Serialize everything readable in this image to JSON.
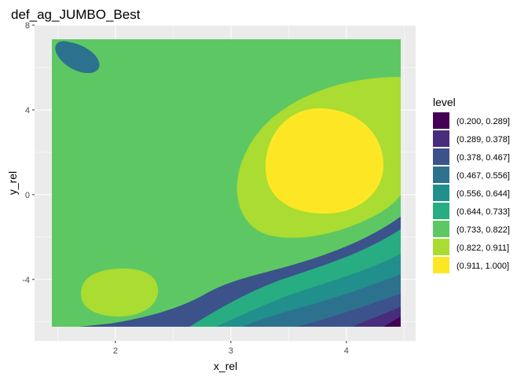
{
  "chart_data": {
    "type": "contour_filled",
    "title": "def_ag_JUMBO_Best",
    "xlabel": "x_rel",
    "ylabel": "y_rel",
    "xlim": [
      1.3,
      4.6
    ],
    "ylim": [
      -6.9,
      8.0
    ],
    "x_ticks": [
      2,
      3,
      4
    ],
    "y_ticks": [
      -4,
      0,
      4,
      8
    ],
    "x_tick_labels": [
      "2",
      "3",
      "4"
    ],
    "y_tick_labels": [
      "-4",
      "0",
      "4",
      "8"
    ],
    "data_extent": {
      "x": [
        1.4,
        4.5
      ],
      "y": [
        -6.3,
        7.5
      ]
    },
    "legend_title": "level",
    "legend_position": "right",
    "levels": [
      {
        "label": "(0.200, 0.289]",
        "color": "#440154"
      },
      {
        "label": "(0.289, 0.378]",
        "color": "#472D7B"
      },
      {
        "label": "(0.378, 0.467]",
        "color": "#3B528B"
      },
      {
        "label": "(0.467, 0.556]",
        "color": "#2C728E"
      },
      {
        "label": "(0.556, 0.644]",
        "color": "#21908C"
      },
      {
        "label": "(0.644, 0.733]",
        "color": "#27AD81"
      },
      {
        "label": "(0.733, 0.822]",
        "color": "#5DC863"
      },
      {
        "label": "(0.822, 0.911]",
        "color": "#AADC32"
      },
      {
        "label": "(0.911, 1.000]",
        "color": "#FDE725"
      }
    ],
    "features": [
      {
        "level_index": 8,
        "shape": "peak",
        "center": [
          3.8,
          1.4
        ]
      },
      {
        "level_index": 7,
        "shape": "secondary_peak",
        "center": [
          2.0,
          -4.6
        ]
      },
      {
        "level_index": 3,
        "shape": "local_rise",
        "center": [
          1.7,
          6.6
        ]
      },
      {
        "level_index": 0,
        "shape": "minimum",
        "center": [
          4.5,
          -6.3
        ]
      }
    ],
    "panel_background": "#EBEBEB",
    "grid": true
  }
}
